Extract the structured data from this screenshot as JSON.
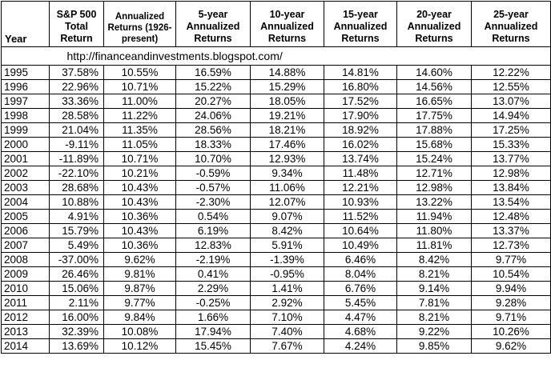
{
  "table": {
    "headers": {
      "year": "Year",
      "sp500": [
        "S&P 500",
        "Total",
        "Return"
      ],
      "annualized": [
        "Annualized",
        "Returns (1926-",
        "present)"
      ],
      "y5": [
        "5-year",
        "Annualized",
        "Returns"
      ],
      "y10": [
        "10-year",
        "Annualized",
        "Returns"
      ],
      "y15": [
        "15-year",
        "Annualized",
        "Returns"
      ],
      "y20": [
        "20-year",
        "Annualized",
        "Returns"
      ],
      "y25": [
        "25-year",
        "Annualized",
        "Returns"
      ]
    },
    "source_url": "http://financeandinvestments.blogspot.com/",
    "rows": [
      [
        "1995",
        "37.58%",
        "10.55%",
        "16.59%",
        "14.88%",
        "14.81%",
        "14.60%",
        "12.22%"
      ],
      [
        "1996",
        "22.96%",
        "10.71%",
        "15.22%",
        "15.29%",
        "16.80%",
        "14.56%",
        "12.55%"
      ],
      [
        "1997",
        "33.36%",
        "11.00%",
        "20.27%",
        "18.05%",
        "17.52%",
        "16.65%",
        "13.07%"
      ],
      [
        "1998",
        "28.58%",
        "11.22%",
        "24.06%",
        "19.21%",
        "17.90%",
        "17.75%",
        "14.94%"
      ],
      [
        "1999",
        "21.04%",
        "11.35%",
        "28.56%",
        "18.21%",
        "18.92%",
        "17.88%",
        "17.25%"
      ],
      [
        "2000",
        "-9.11%",
        "11.05%",
        "18.33%",
        "17.46%",
        "16.02%",
        "15.68%",
        "15.33%"
      ],
      [
        "2001",
        "-11.89%",
        "10.71%",
        "10.70%",
        "12.93%",
        "13.74%",
        "15.24%",
        "13.77%"
      ],
      [
        "2002",
        "-22.10%",
        "10.21%",
        "-0.59%",
        "9.34%",
        "11.48%",
        "12.71%",
        "12.98%"
      ],
      [
        "2003",
        "28.68%",
        "10.43%",
        "-0.57%",
        "11.06%",
        "12.21%",
        "12.98%",
        "13.84%"
      ],
      [
        "2004",
        "10.88%",
        "10.43%",
        "-2.30%",
        "12.07%",
        "10.93%",
        "13.22%",
        "13.54%"
      ],
      [
        "2005",
        "4.91%",
        "10.36%",
        "0.54%",
        "9.07%",
        "11.52%",
        "11.94%",
        "12.48%"
      ],
      [
        "2006",
        "15.79%",
        "10.43%",
        "6.19%",
        "8.42%",
        "10.64%",
        "11.80%",
        "13.37%"
      ],
      [
        "2007",
        "5.49%",
        "10.36%",
        "12.83%",
        "5.91%",
        "10.49%",
        "11.81%",
        "12.73%"
      ],
      [
        "2008",
        "-37.00%",
        "9.62%",
        "-2.19%",
        "-1.39%",
        "6.46%",
        "8.42%",
        "9.77%"
      ],
      [
        "2009",
        "26.46%",
        "9.81%",
        "0.41%",
        "-0.95%",
        "8.04%",
        "8.21%",
        "10.54%"
      ],
      [
        "2010",
        "15.06%",
        "9.87%",
        "2.29%",
        "1.41%",
        "6.76%",
        "9.14%",
        "9.94%"
      ],
      [
        "2011",
        "2.11%",
        "9.77%",
        "-0.25%",
        "2.92%",
        "5.45%",
        "7.81%",
        "9.28%"
      ],
      [
        "2012",
        "16.00%",
        "9.84%",
        "1.66%",
        "7.10%",
        "4.47%",
        "8.21%",
        "9.71%"
      ],
      [
        "2013",
        "32.39%",
        "10.08%",
        "17.94%",
        "7.40%",
        "4.68%",
        "9.22%",
        "10.26%"
      ],
      [
        "2014",
        "13.69%",
        "10.12%",
        "15.45%",
        "7.67%",
        "4.24%",
        "9.85%",
        "9.62%"
      ]
    ]
  }
}
